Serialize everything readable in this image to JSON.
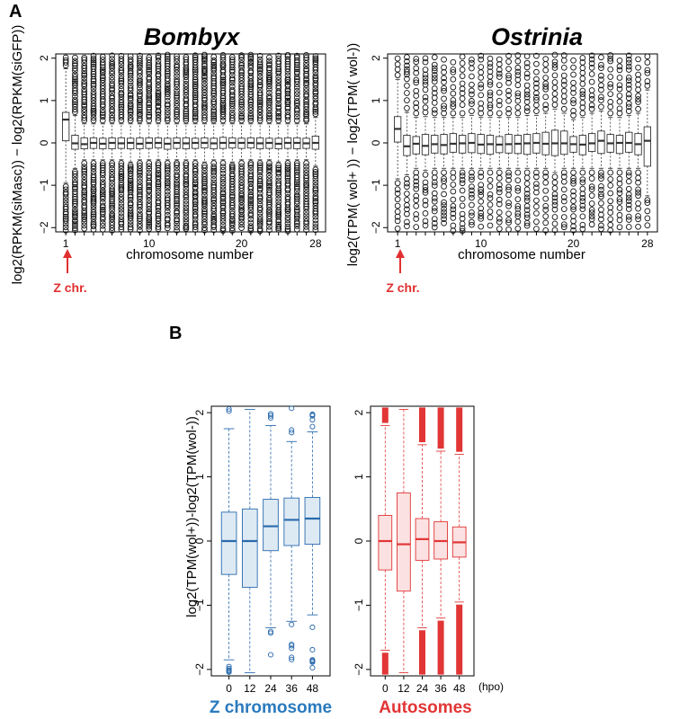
{
  "figure": {
    "panel_a_letter": "A",
    "panel_b_letter": "B",
    "z_marker_label": "Z chr.",
    "z_marker_color": "#e03030"
  },
  "chart_data": [
    {
      "type": "box",
      "title": "Bombyx",
      "xlabel": "chromosome number",
      "ylabel": "log2(RPKM(siMasc)) − log2(RPKM(siGFP))",
      "ylim": [
        -2.1,
        2.1
      ],
      "yticks": [
        "−2",
        "−1",
        "0",
        "1",
        "2"
      ],
      "yticks_values": [
        -2,
        -1,
        0,
        1,
        2
      ],
      "x_tick_labels": {
        "1": "1",
        "10": "10",
        "20": "20",
        "28": "28"
      },
      "categories": [
        1,
        2,
        3,
        4,
        5,
        6,
        7,
        8,
        9,
        10,
        11,
        12,
        13,
        14,
        15,
        16,
        17,
        18,
        19,
        20,
        21,
        22,
        23,
        24,
        25,
        26,
        27,
        28
      ],
      "medians": [
        0.55,
        -0.01,
        -0.03,
        0.0,
        -0.02,
        0.0,
        -0.01,
        0.0,
        -0.02,
        0.0,
        0.0,
        -0.02,
        0.0,
        -0.01,
        0.0,
        0.0,
        -0.01,
        0.0,
        0.0,
        0.0,
        0.0,
        -0.01,
        0.0,
        -0.02,
        0.0,
        0.0,
        -0.01,
        0.0
      ],
      "q1": [
        0.05,
        -0.15,
        -0.14,
        -0.13,
        -0.14,
        -0.14,
        -0.13,
        -0.14,
        -0.14,
        -0.13,
        -0.12,
        -0.15,
        -0.13,
        -0.14,
        -0.13,
        -0.12,
        -0.14,
        -0.13,
        -0.12,
        -0.13,
        -0.12,
        -0.14,
        -0.13,
        -0.14,
        -0.13,
        -0.14,
        -0.13,
        -0.15
      ],
      "q3": [
        0.72,
        0.18,
        0.12,
        0.12,
        0.11,
        0.12,
        0.12,
        0.11,
        0.12,
        0.12,
        0.12,
        0.11,
        0.12,
        0.12,
        0.11,
        0.12,
        0.11,
        0.13,
        0.12,
        0.11,
        0.12,
        0.12,
        0.11,
        0.11,
        0.12,
        0.12,
        0.11,
        0.16
      ],
      "whisker_low": [
        -0.95,
        -0.6,
        -0.4,
        -0.4,
        -0.4,
        -0.4,
        -0.4,
        -0.45,
        -0.4,
        -0.4,
        -0.4,
        -0.4,
        -0.4,
        -0.4,
        -0.4,
        -0.45,
        -0.4,
        -0.4,
        -0.45,
        -0.4,
        -0.4,
        -0.4,
        -0.4,
        -0.45,
        -0.4,
        -0.4,
        -0.4,
        -0.55
      ],
      "whisker_high": [
        1.75,
        0.65,
        0.45,
        0.45,
        0.45,
        0.45,
        0.45,
        0.45,
        0.45,
        0.45,
        0.45,
        0.45,
        0.45,
        0.45,
        0.45,
        0.45,
        0.45,
        0.45,
        0.45,
        0.45,
        0.45,
        0.45,
        0.45,
        0.45,
        0.45,
        0.45,
        0.45,
        0.6
      ],
      "box_fill": "#ffffff",
      "color": "#333333",
      "outlier_density": "high"
    },
    {
      "type": "box",
      "title": "Ostrinia",
      "xlabel": "chromosome number",
      "ylabel": "log2(TPM( wol+ )) − log2(TPM( wol-))",
      "ylim": [
        -2.1,
        2.1
      ],
      "yticks": [
        "−2",
        "−1",
        "0",
        "1",
        "2"
      ],
      "yticks_values": [
        -2,
        -1,
        0,
        1,
        2
      ],
      "x_tick_labels": {
        "1": "1",
        "10": "10",
        "20": "20",
        "28": "28"
      },
      "categories": [
        1,
        2,
        3,
        4,
        5,
        6,
        7,
        8,
        9,
        10,
        11,
        12,
        13,
        14,
        15,
        16,
        17,
        18,
        19,
        20,
        21,
        22,
        23,
        24,
        25,
        26,
        27,
        28
      ],
      "medians": [
        0.33,
        -0.08,
        -0.02,
        -0.07,
        -0.03,
        -0.05,
        -0.02,
        -0.01,
        0.0,
        -0.04,
        -0.03,
        -0.04,
        -0.03,
        -0.02,
        -0.01,
        0.0,
        -0.02,
        -0.01,
        -0.01,
        -0.03,
        -0.04,
        -0.01,
        0.05,
        -0.01,
        0.0,
        0.0,
        -0.03,
        0.05
      ],
      "q1": [
        0.02,
        -0.3,
        -0.26,
        -0.28,
        -0.24,
        -0.26,
        -0.22,
        -0.24,
        -0.23,
        -0.25,
        -0.27,
        -0.23,
        -0.24,
        -0.25,
        -0.27,
        -0.24,
        -0.28,
        -0.3,
        -0.27,
        -0.22,
        -0.28,
        -0.2,
        -0.25,
        -0.22,
        -0.25,
        -0.22,
        -0.28,
        -0.55
      ],
      "q3": [
        0.62,
        0.18,
        0.15,
        0.2,
        0.18,
        0.2,
        0.22,
        0.18,
        0.22,
        0.2,
        0.18,
        0.15,
        0.2,
        0.18,
        0.2,
        0.22,
        0.25,
        0.3,
        0.28,
        0.15,
        0.18,
        0.22,
        0.28,
        0.2,
        0.18,
        0.25,
        0.22,
        0.38
      ],
      "whisker_low": [
        -0.85,
        -0.75,
        -0.6,
        -0.65,
        -0.6,
        -0.6,
        -0.6,
        -0.6,
        -0.6,
        -0.6,
        -0.6,
        -0.6,
        -0.6,
        -0.6,
        -0.6,
        -0.6,
        -0.6,
        -0.7,
        -0.6,
        -0.6,
        -0.6,
        -0.6,
        -0.6,
        -0.6,
        -0.6,
        -0.6,
        -0.6,
        -1.25
      ],
      "whisker_high": [
        1.5,
        0.72,
        0.6,
        0.62,
        0.6,
        0.6,
        0.6,
        0.6,
        0.65,
        0.6,
        0.6,
        0.6,
        0.6,
        0.6,
        0.65,
        0.65,
        0.7,
        0.8,
        0.7,
        0.55,
        0.6,
        0.7,
        0.75,
        0.6,
        0.6,
        0.65,
        0.7,
        1.25
      ],
      "box_fill": "#ffffff",
      "color": "#333333",
      "outlier_density": "medium"
    },
    {
      "type": "box",
      "title": "",
      "group_label": "Z chromosome",
      "ylabel": "log2(TPM(wol+))-log2(TPM(wol-))",
      "ylim": [
        -2.1,
        2.1
      ],
      "yticks": [
        "−2",
        "−1",
        "0",
        "1",
        "2"
      ],
      "yticks_values": [
        -2,
        -1,
        0,
        1,
        2
      ],
      "categories": [
        "0",
        "12",
        "24",
        "36",
        "48"
      ],
      "medians": [
        0.0,
        0.0,
        0.23,
        0.33,
        0.35
      ],
      "q1": [
        -0.52,
        -0.72,
        -0.15,
        -0.07,
        -0.05
      ],
      "q3": [
        0.45,
        0.5,
        0.65,
        0.67,
        0.68
      ],
      "whisker_low": [
        -1.85,
        -2.05,
        -1.35,
        -1.25,
        -1.15
      ],
      "whisker_high": [
        1.75,
        2.05,
        1.8,
        1.55,
        1.7
      ],
      "color": "#2a6aad",
      "box_fill": "#ddeaf4",
      "group_color": "#2a7abd",
      "outlier_density": "low"
    },
    {
      "type": "box",
      "title": "",
      "group_label": "Autosomes",
      "xlabel_unit": "(hpo)",
      "ylim": [
        -2.1,
        2.1
      ],
      "yticks": [
        "−2",
        "−1",
        "0",
        "1",
        "2"
      ],
      "yticks_values": [
        -2,
        -1,
        0,
        1,
        2
      ],
      "categories": [
        "0",
        "12",
        "24",
        "36",
        "48"
      ],
      "medians": [
        0.0,
        -0.05,
        0.03,
        0.0,
        -0.02
      ],
      "q1": [
        -0.45,
        -0.78,
        -0.3,
        -0.28,
        -0.25
      ],
      "q3": [
        0.4,
        0.75,
        0.35,
        0.3,
        0.22
      ],
      "whisker_low": [
        -1.7,
        -2.05,
        -1.35,
        -1.2,
        -0.95
      ],
      "whisker_high": [
        1.8,
        2.05,
        1.5,
        1.4,
        1.35
      ],
      "color": "#e23535",
      "box_fill": "#fbe1e1",
      "group_color": "#e23535",
      "outlier_density": "extreme"
    }
  ]
}
